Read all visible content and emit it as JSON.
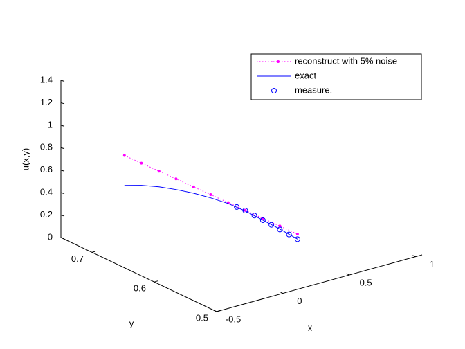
{
  "chart_data": {
    "type": "line3d",
    "xlabel": "x",
    "ylabel": "y",
    "zlabel": "u(x,y)",
    "xlim": [
      -0.5,
      1.05
    ],
    "ylim": [
      0.5,
      0.75
    ],
    "zlim": [
      0,
      1.4
    ],
    "xticks": [
      -0.5,
      0,
      0.5,
      1
    ],
    "yticks": [
      0.5,
      0.6,
      0.7
    ],
    "zticks": [
      0,
      0.2,
      0.4,
      0.6,
      0.8,
      1,
      1.2,
      1.4
    ],
    "legend": "top-right",
    "series": [
      {
        "name": "reconstruct with 5% noise",
        "color": "#ff00ff",
        "line": "dotted",
        "marker": "dot",
        "x": [
          -0.5,
          -0.4,
          -0.3,
          -0.2,
          -0.1,
          0,
          0.1,
          0.2,
          0.3,
          0.4,
          0.5
        ],
        "y": [
          0.648,
          0.642,
          0.635,
          0.629,
          0.622,
          0.616,
          0.609,
          0.603,
          0.596,
          0.59,
          0.583
        ],
        "z": [
          1.0,
          0.915,
          0.829,
          0.744,
          0.658,
          0.573,
          0.487,
          0.402,
          0.316,
          0.231,
          0.145
        ]
      },
      {
        "name": "exact",
        "color": "#0000ff",
        "line": "solid",
        "marker": "none",
        "x": [
          -0.5,
          -0.4,
          -0.3,
          -0.2,
          -0.1,
          0,
          0.1,
          0.2,
          0.3,
          0.4,
          0.5
        ],
        "y": [
          0.648,
          0.642,
          0.635,
          0.629,
          0.622,
          0.616,
          0.609,
          0.603,
          0.596,
          0.59,
          0.583
        ],
        "z": [
          0.733,
          0.717,
          0.69,
          0.649,
          0.602,
          0.544,
          0.479,
          0.396,
          0.3,
          0.204,
          0.1
        ]
      },
      {
        "name": "measure.",
        "color": "#0000ff",
        "line": "none",
        "marker": "circle",
        "x": [
          0.15,
          0.2,
          0.25,
          0.3,
          0.35,
          0.4,
          0.45,
          0.5
        ],
        "y": [
          0.606,
          0.603,
          0.599,
          0.596,
          0.593,
          0.59,
          0.586,
          0.583
        ],
        "z": [
          0.44,
          0.4,
          0.35,
          0.3,
          0.25,
          0.2,
          0.15,
          0.1
        ]
      }
    ]
  }
}
